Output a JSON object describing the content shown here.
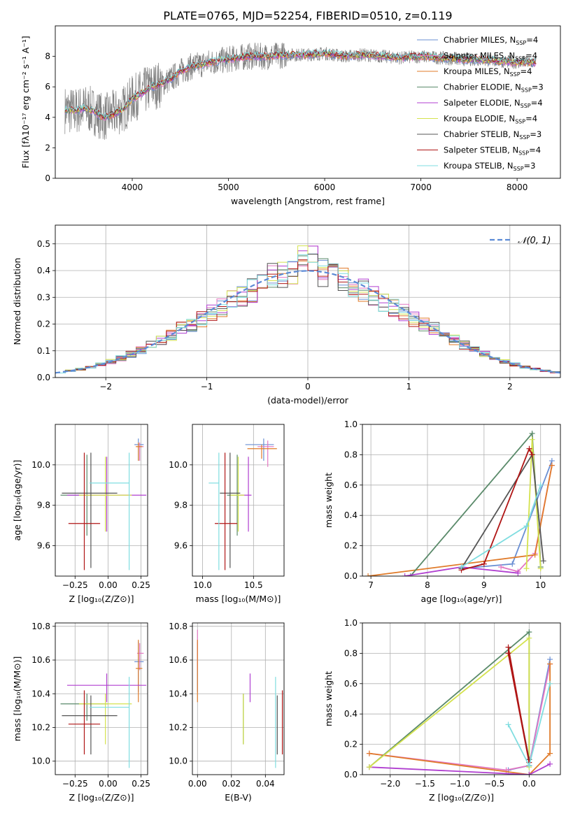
{
  "figure_title": "PLATE=0765, MJD=52254, FIBERID=0510, z=0.119",
  "colors": {
    "Chabrier MILES": "#6a8fd3",
    "Salpeter MILES": "#e377c2",
    "Kroupa MILES": "#e07b2a",
    "Chabrier ELODIE": "#5a8a6a",
    "Salpeter ELODIE": "#b03fd0",
    "Kroupa ELODIE": "#d4e24d",
    "Chabrier STELIB": "#555555",
    "Salpeter STELIB": "#b01515",
    "Kroupa STELIB": "#7fdde0",
    "data": "#7f7f7f"
  },
  "chart_data": [
    {
      "id": "spectrum",
      "type": "line",
      "title": "PLATE=0765, MJD=52254, FIBERID=0510, z=0.119",
      "xlabel": "wavelength [Angstrom, rest frame]",
      "ylabel": "Flux [fλ10⁻¹⁷ erg cm⁻² s⁻¹ A⁻¹]",
      "xlim": [
        3200,
        8450
      ],
      "ylim": [
        0,
        10
      ],
      "xticks": [
        4000,
        5000,
        6000,
        7000,
        8000
      ],
      "yticks": [
        0,
        2,
        4,
        6,
        8
      ],
      "grid": false,
      "legend": "top-right",
      "legend_entries": [
        {
          "name": "Chabrier MILES",
          "nssp": "4"
        },
        {
          "name": "Salpeter MILES",
          "nssp": "4"
        },
        {
          "name": "Kroupa MILES",
          "nssp": "4"
        },
        {
          "name": "Chabrier ELODIE",
          "nssp": "3"
        },
        {
          "name": "Salpeter ELODIE",
          "nssp": "4"
        },
        {
          "name": "Kroupa ELODIE",
          "nssp": "4"
        },
        {
          "name": "Chabrier STELIB",
          "nssp": "3"
        },
        {
          "name": "Salpeter STELIB",
          "nssp": "4"
        },
        {
          "name": "Kroupa STELIB",
          "nssp": "3"
        }
      ],
      "continuum": {
        "x": [
          3300,
          3400,
          3500,
          3600,
          3700,
          3800,
          3900,
          4000,
          4100,
          4200,
          4300,
          4400,
          4500,
          4600,
          4800,
          5000,
          5200,
          5400,
          5600,
          5800,
          6000,
          6200,
          6400,
          6600,
          6800,
          7000,
          7200,
          7400,
          7600,
          7800,
          8000,
          8200
        ],
        "y": [
          4.5,
          4.4,
          4.6,
          4.4,
          4.0,
          4.2,
          4.5,
          5.2,
          5.6,
          6.0,
          6.2,
          6.5,
          7.0,
          7.3,
          7.6,
          7.8,
          8.0,
          8.0,
          8.1,
          8.1,
          8.2,
          8.0,
          8.1,
          8.0,
          7.9,
          8.0,
          7.9,
          7.8,
          7.8,
          7.7,
          7.6,
          7.6
        ]
      }
    },
    {
      "id": "residuals",
      "type": "histogram",
      "xlabel": "(data-model)/error",
      "ylabel": "Normed distribution",
      "xlim": [
        -2.5,
        2.5
      ],
      "ylim": [
        0,
        0.57
      ],
      "xticks": [
        -2,
        -1,
        0,
        1,
        2
      ],
      "yticks": [
        0.0,
        0.1,
        0.2,
        0.3,
        0.4,
        0.5
      ],
      "grid": true,
      "legend": "top-right",
      "legend_label": "𝒩(0, 1)",
      "reference": {
        "type": "gaussian",
        "mean": 0,
        "sigma": 1
      }
    },
    {
      "id": "age-vs-Z",
      "type": "errorbar",
      "xlabel": "Z [log₁₀(Z/Z⊙)]",
      "ylabel": "age  [log₁₀(age/yr)]",
      "xlim": [
        -0.4,
        0.3
      ],
      "ylim": [
        9.45,
        10.2
      ],
      "xticks": [
        -0.25,
        0.0,
        0.25
      ],
      "yticks": [
        9.6,
        9.8,
        10.0
      ],
      "points": [
        {
          "model": "Chabrier MILES",
          "x": 0.23,
          "y": 10.1,
          "xerr": [
            0.03,
            0.04
          ],
          "yerr": [
            0.08,
            0.03
          ]
        },
        {
          "model": "Salpeter MILES",
          "x": 0.24,
          "y": 10.09,
          "xerr": [
            0.02,
            0.03
          ],
          "yerr": [
            0.07,
            0.02
          ]
        },
        {
          "model": "Kroupa MILES",
          "x": 0.23,
          "y": 10.09,
          "xerr": [
            0.02,
            0.03
          ],
          "yerr": [
            0.07,
            0.02
          ]
        },
        {
          "model": "Chabrier ELODIE",
          "x": -0.16,
          "y": 9.85,
          "xerr": [
            0.2,
            0.16
          ],
          "yerr": [
            0.2,
            0.2
          ]
        },
        {
          "model": "Salpeter ELODIE",
          "x": -0.01,
          "y": 9.85,
          "xerr": [
            0.3,
            0.3
          ],
          "yerr": [
            0.18,
            0.19
          ]
        },
        {
          "model": "Kroupa ELODIE",
          "x": -0.02,
          "y": 9.85,
          "xerr": [
            0.2,
            0.2
          ],
          "yerr": [
            0.18,
            0.19
          ]
        },
        {
          "model": "Chabrier STELIB",
          "x": -0.13,
          "y": 9.86,
          "xerr": [
            0.22,
            0.2
          ],
          "yerr": [
            0.37,
            0.2
          ]
        },
        {
          "model": "Salpeter STELIB",
          "x": -0.18,
          "y": 9.71,
          "xerr": [
            0.12,
            0.12
          ],
          "yerr": [
            0.23,
            0.35
          ]
        },
        {
          "model": "Kroupa STELIB",
          "x": 0.16,
          "y": 9.91,
          "xerr": [
            0.3,
            0.0
          ],
          "yerr": [
            0.43,
            0.15
          ]
        }
      ]
    },
    {
      "id": "age-vs-mass",
      "type": "errorbar",
      "xlabel": "mass [log₁₀(M/M⊙)]",
      "ylabel": "",
      "xlim": [
        9.9,
        10.8
      ],
      "ylim": [
        9.45,
        10.2
      ],
      "xticks": [
        10.0,
        10.5
      ],
      "yticks": [
        9.6,
        9.8,
        10.0
      ],
      "points": [
        {
          "model": "Chabrier MILES",
          "x": 10.6,
          "y": 10.1,
          "xerr": [
            0.18,
            0.1
          ],
          "yerr": [
            0.08,
            0.03
          ]
        },
        {
          "model": "Salpeter MILES",
          "x": 10.64,
          "y": 10.09,
          "xerr": [
            0.1,
            0.06
          ],
          "yerr": [
            0.1,
            0.03
          ]
        },
        {
          "model": "Kroupa MILES",
          "x": 10.58,
          "y": 10.08,
          "xerr": [
            0.14,
            0.15
          ],
          "yerr": [
            0.05,
            0.02
          ]
        },
        {
          "model": "Chabrier ELODIE",
          "x": 10.34,
          "y": 9.85,
          "xerr": [
            0.1,
            0.06
          ],
          "yerr": [
            0.2,
            0.2
          ]
        },
        {
          "model": "Salpeter ELODIE",
          "x": 10.45,
          "y": 9.85,
          "xerr": [
            0.1,
            0.03
          ],
          "yerr": [
            0.18,
            0.19
          ]
        },
        {
          "model": "Kroupa ELODIE",
          "x": 10.35,
          "y": 9.85,
          "xerr": [
            0.08,
            0.06
          ],
          "yerr": [
            0.18,
            0.19
          ]
        },
        {
          "model": "Chabrier STELIB",
          "x": 10.27,
          "y": 9.86,
          "xerr": [
            0.1,
            0.1
          ],
          "yerr": [
            0.37,
            0.2
          ]
        },
        {
          "model": "Salpeter STELIB",
          "x": 10.22,
          "y": 9.71,
          "xerr": [
            0.1,
            0.12
          ],
          "yerr": [
            0.23,
            0.35
          ]
        },
        {
          "model": "Kroupa STELIB",
          "x": 10.16,
          "y": 9.91,
          "xerr": [
            0.1,
            0.0
          ],
          "yerr": [
            0.43,
            0.15
          ]
        }
      ]
    },
    {
      "id": "mass-weight-vs-age",
      "type": "line",
      "xlabel": "age  [log₁₀(age/yr)]",
      "ylabel": "mass weight",
      "xlim": [
        6.85,
        10.35
      ],
      "ylim": [
        0,
        1
      ],
      "xticks": [
        7,
        8,
        9,
        10
      ],
      "yticks": [
        0.0,
        0.2,
        0.4,
        0.6,
        0.8,
        1.0
      ],
      "grid": true,
      "series": [
        {
          "model": "Chabrier MILES",
          "x": [
            8.6,
            9.5,
            10.2
          ],
          "y": [
            0.05,
            0.08,
            0.76
          ]
        },
        {
          "model": "Salpeter MILES",
          "x": [
            9.3,
            9.6,
            9.9,
            10.2
          ],
          "y": [
            0.06,
            0.03,
            0.15,
            0.73
          ]
        },
        {
          "model": "Kroupa MILES",
          "x": [
            6.95,
            9.9,
            10.2
          ],
          "y": [
            0.0,
            0.14,
            0.73
          ]
        },
        {
          "model": "Chabrier ELODIE",
          "x": [
            7.7,
            9.85,
            10.0
          ],
          "y": [
            0.0,
            0.94,
            0.06
          ]
        },
        {
          "model": "Salpeter ELODIE",
          "x": [
            7.6,
            8.6,
            9.6
          ],
          "y": [
            0.0,
            0.06,
            0.02
          ]
        },
        {
          "model": "Kroupa ELODIE",
          "x": [
            9.75,
            9.85,
            10.0
          ],
          "y": [
            0.05,
            0.9,
            0.05
          ]
        },
        {
          "model": "Chabrier STELIB",
          "x": [
            8.6,
            9.85,
            10.05
          ],
          "y": [
            0.05,
            0.8,
            0.1
          ]
        },
        {
          "model": "Salpeter STELIB",
          "x": [
            8.6,
            9.0,
            9.8,
            9.85
          ],
          "y": [
            0.04,
            0.08,
            0.84,
            0.8
          ]
        },
        {
          "model": "Kroupa STELIB",
          "x": [
            8.6,
            9.75,
            10.0
          ],
          "y": [
            0.06,
            0.33,
            0.6
          ]
        }
      ]
    },
    {
      "id": "mass-vs-Z",
      "type": "errorbar",
      "xlabel": "Z [log₁₀(Z/Z⊙)]",
      "ylabel": "mass [log₁₀(M/M⊙)]",
      "xlim": [
        -0.4,
        0.3
      ],
      "ylim": [
        9.92,
        10.82
      ],
      "xticks": [
        -0.25,
        0.0,
        0.25
      ],
      "yticks": [
        10.0,
        10.2,
        10.4,
        10.6,
        10.8
      ],
      "points": [
        {
          "model": "Chabrier MILES",
          "x": 0.23,
          "y": 10.59,
          "xerr": [
            0.03,
            0.04
          ],
          "yerr": [
            0.18,
            0.12
          ]
        },
        {
          "model": "Salpeter MILES",
          "x": 0.24,
          "y": 10.64,
          "xerr": [
            0.02,
            0.03
          ],
          "yerr": [
            0.1,
            0.06
          ]
        },
        {
          "model": "Kroupa MILES",
          "x": 0.23,
          "y": 10.55,
          "xerr": [
            0.02,
            0.03
          ],
          "yerr": [
            0.2,
            0.17
          ]
        },
        {
          "model": "Chabrier ELODIE",
          "x": -0.16,
          "y": 10.34,
          "xerr": [
            0.2,
            0.16
          ],
          "yerr": [
            0.1,
            0.06
          ]
        },
        {
          "model": "Salpeter ELODIE",
          "x": -0.01,
          "y": 10.45,
          "xerr": [
            0.3,
            0.3
          ],
          "yerr": [
            0.1,
            0.07
          ]
        },
        {
          "model": "Kroupa ELODIE",
          "x": -0.02,
          "y": 10.34,
          "xerr": [
            0.2,
            0.2
          ],
          "yerr": [
            0.24,
            0.06
          ]
        },
        {
          "model": "Chabrier STELIB",
          "x": -0.13,
          "y": 10.27,
          "xerr": [
            0.22,
            0.2
          ],
          "yerr": [
            0.23,
            0.12
          ]
        },
        {
          "model": "Salpeter STELIB",
          "x": -0.18,
          "y": 10.22,
          "xerr": [
            0.12,
            0.12
          ],
          "yerr": [
            0.18,
            0.2
          ]
        },
        {
          "model": "Kroupa STELIB",
          "x": 0.16,
          "y": 10.32,
          "xerr": [
            0.3,
            0.0
          ],
          "yerr": [
            0.36,
            0.18
          ]
        }
      ]
    },
    {
      "id": "mass-vs-ebv",
      "type": "errorbar",
      "xlabel": "E(B-V)",
      "ylabel": "",
      "xlim": [
        -0.003,
        0.051
      ],
      "ylim": [
        9.92,
        10.82
      ],
      "xticks": [
        0.0,
        0.02,
        0.04
      ],
      "yticks": [
        10.0,
        10.2,
        10.4,
        10.6,
        10.8
      ],
      "points": [
        {
          "model": "Chabrier MILES",
          "x": 0.0,
          "y": 10.59,
          "yerr": [
            0.18,
            0.12
          ]
        },
        {
          "model": "Salpeter MILES",
          "x": 0.0,
          "y": 10.64,
          "yerr": [
            0.1,
            0.14
          ]
        },
        {
          "model": "Kroupa MILES",
          "x": 0.0,
          "y": 10.55,
          "yerr": [
            0.2,
            0.17
          ]
        },
        {
          "model": "Chabrier ELODIE",
          "x": 0.027,
          "y": 10.34,
          "yerr": [
            0.24,
            0.06
          ]
        },
        {
          "model": "Salpeter ELODIE",
          "x": 0.031,
          "y": 10.45,
          "yerr": [
            0.1,
            0.07
          ]
        },
        {
          "model": "Kroupa ELODIE",
          "x": 0.027,
          "y": 10.34,
          "yerr": [
            0.24,
            0.06
          ]
        },
        {
          "model": "Chabrier STELIB",
          "x": 0.047,
          "y": 10.27,
          "yerr": [
            0.23,
            0.12
          ]
        },
        {
          "model": "Salpeter STELIB",
          "x": 0.05,
          "y": 10.22,
          "yerr": [
            0.18,
            0.2
          ]
        },
        {
          "model": "Kroupa STELIB",
          "x": 0.046,
          "y": 10.32,
          "yerr": [
            0.36,
            0.18
          ]
        }
      ]
    },
    {
      "id": "mass-weight-vs-Z",
      "type": "line",
      "xlabel": "Z [log₁₀(Z/Z⊙)]",
      "ylabel": "mass weight",
      "xlim": [
        -2.4,
        0.45
      ],
      "ylim": [
        0,
        1
      ],
      "xticks": [
        -2.0,
        -1.5,
        -1.0,
        -0.5,
        0.0
      ],
      "yticks": [
        0.0,
        0.2,
        0.4,
        0.6,
        0.8,
        1.0
      ],
      "grid": true,
      "series": [
        {
          "model": "Chabrier MILES",
          "x": [
            -0.3,
            0.0,
            0.3
          ],
          "y": [
            0.03,
            0.06,
            0.76
          ]
        },
        {
          "model": "Salpeter MILES",
          "x": [
            -2.3,
            -0.33,
            0.0,
            0.3
          ],
          "y": [
            0.14,
            0.03,
            0.06,
            0.73
          ]
        },
        {
          "model": "Kroupa MILES",
          "x": [
            -2.3,
            0.0,
            0.3,
            0.3
          ],
          "y": [
            0.14,
            0.0,
            0.14,
            0.73
          ]
        },
        {
          "model": "Chabrier ELODIE",
          "x": [
            -2.3,
            0.0,
            0.0
          ],
          "y": [
            0.05,
            0.94,
            0.06
          ]
        },
        {
          "model": "Salpeter ELODIE",
          "x": [
            -2.3,
            0.0,
            0.3
          ],
          "y": [
            0.05,
            0.0,
            0.07
          ]
        },
        {
          "model": "Kroupa ELODIE",
          "x": [
            -2.3,
            0.0,
            0.0
          ],
          "y": [
            0.05,
            0.9,
            0.05
          ]
        },
        {
          "model": "Chabrier STELIB",
          "x": [
            -0.3,
            0.0,
            0.0
          ],
          "y": [
            0.8,
            0.1,
            0.1
          ]
        },
        {
          "model": "Salpeter STELIB",
          "x": [
            -0.3,
            0.0,
            -0.3
          ],
          "y": [
            0.84,
            0.08,
            0.8
          ]
        },
        {
          "model": "Kroupa STELIB",
          "x": [
            -0.3,
            0.0,
            0.3
          ],
          "y": [
            0.33,
            0.06,
            0.6
          ]
        }
      ]
    }
  ]
}
